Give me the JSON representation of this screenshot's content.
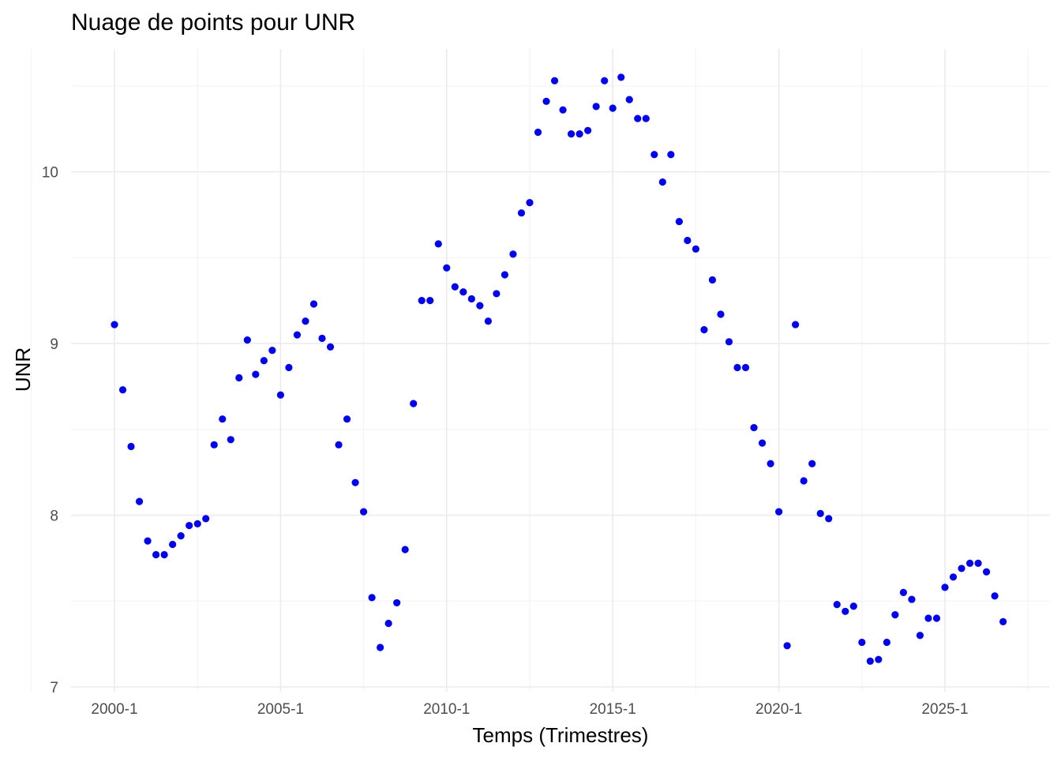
{
  "chart_data": {
    "type": "scatter",
    "title": "Nuage de points pour UNR",
    "xlabel": "Temps (Trimestres)",
    "ylabel": "UNR",
    "point_color": "#0000ff",
    "grid": true,
    "x_tick_labels": [
      "2000-1",
      "2005-1",
      "2010-1",
      "2015-1",
      "2020-1",
      "2025-1"
    ],
    "y_tick_labels": [
      "7",
      "8",
      "9",
      "10"
    ],
    "ylim": [
      7,
      10.7
    ],
    "x_start": "2000-1",
    "series": [
      {
        "values": [
          9.11,
          8.73,
          8.4,
          8.08,
          7.85,
          7.77,
          7.77,
          7.83,
          7.88,
          7.94,
          7.95,
          7.98,
          8.41,
          8.56,
          8.44,
          8.8,
          9.02,
          8.82,
          8.9,
          8.96,
          8.7,
          8.86,
          9.05,
          9.13,
          9.23,
          9.03,
          8.98,
          8.41,
          8.56,
          8.19,
          8.02,
          7.52,
          7.23,
          7.37,
          7.49,
          7.8,
          8.65,
          9.25,
          9.25,
          9.58,
          9.44,
          9.33,
          9.3,
          9.26,
          9.22,
          9.13,
          9.29,
          9.4,
          9.52,
          9.76,
          9.82,
          10.23,
          10.41,
          10.53,
          10.36,
          10.22,
          10.22,
          10.24,
          10.38,
          10.53,
          10.37,
          10.55,
          10.42,
          10.31,
          10.31,
          10.1,
          9.94,
          10.1,
          9.71,
          9.6,
          9.55,
          9.08,
          9.37,
          9.17,
          9.01,
          8.86,
          8.86,
          8.51,
          8.42,
          8.3,
          8.02,
          7.24,
          9.11,
          8.2,
          8.3,
          8.01,
          7.98,
          7.48,
          7.44,
          7.47,
          7.26,
          7.15,
          7.16,
          7.26,
          7.42,
          7.55,
          7.51,
          7.3,
          7.4,
          7.4,
          7.58,
          7.64,
          7.69,
          7.72,
          7.72,
          7.67,
          7.53,
          7.38
        ]
      }
    ]
  }
}
